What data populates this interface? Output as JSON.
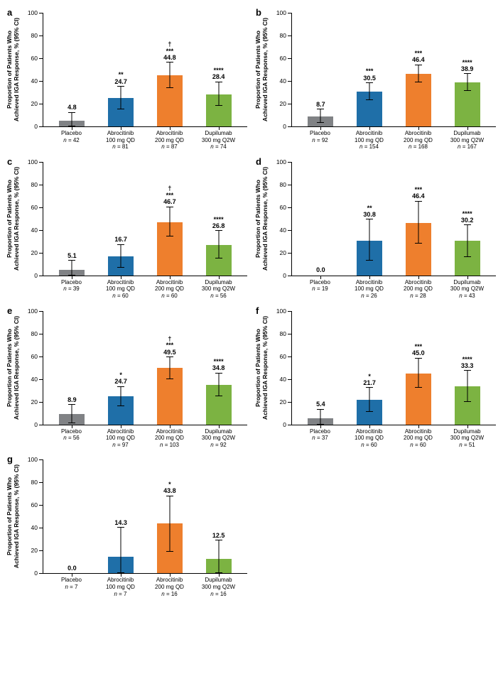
{
  "ylabel_line1": "Proportion of Patients Who",
  "ylabel_line2": "Achieved IGA Response, % (95% CI)",
  "ylim": [
    0,
    100
  ],
  "ytick_step": 20,
  "colors": {
    "placebo": "#808285",
    "abro100": "#1f6fa8",
    "abro200": "#ee7f2d",
    "dupi": "#7cb342"
  },
  "groups": [
    {
      "key": "placebo",
      "label": "Placebo",
      "dose": ""
    },
    {
      "key": "abro100",
      "label": "Abrocitinib",
      "dose": "100 mg QD"
    },
    {
      "key": "abro200",
      "label": "Abrocitinib",
      "dose": "200 mg QD"
    },
    {
      "key": "dupi",
      "label": "Dupilumab",
      "dose": "300 mg Q2W"
    }
  ],
  "panels": {
    "a": {
      "letter": "a",
      "data": [
        {
          "n": 42,
          "value": 4.8,
          "lo": 0,
          "hi": 12,
          "sig": ""
        },
        {
          "n": 81,
          "value": 24.7,
          "lo": 15,
          "hi": 35,
          "sig": "**"
        },
        {
          "n": 87,
          "value": 44.8,
          "lo": 34,
          "hi": 56,
          "sig": "†\n***"
        },
        {
          "n": 74,
          "value": 28.4,
          "lo": 18,
          "hi": 39,
          "sig": "****"
        }
      ]
    },
    "b": {
      "letter": "b",
      "data": [
        {
          "n": 92,
          "value": 8.7,
          "lo": 3,
          "hi": 15,
          "sig": ""
        },
        {
          "n": 154,
          "value": 30.5,
          "lo": 23,
          "hi": 38,
          "sig": "***"
        },
        {
          "n": 168,
          "value": 46.4,
          "lo": 39,
          "hi": 54,
          "sig": "***"
        },
        {
          "n": 167,
          "value": 38.9,
          "lo": 31,
          "hi": 46,
          "sig": "****"
        }
      ]
    },
    "c": {
      "letter": "c",
      "data": [
        {
          "n": 39,
          "value": 5.1,
          "lo": 0,
          "hi": 13,
          "sig": ""
        },
        {
          "n": 60,
          "value": 16.7,
          "lo": 7,
          "hi": 27,
          "sig": ""
        },
        {
          "n": 60,
          "value": 46.7,
          "lo": 34,
          "hi": 60,
          "sig": "†\n***"
        },
        {
          "n": 56,
          "value": 26.8,
          "lo": 15,
          "hi": 39,
          "sig": "****"
        }
      ]
    },
    "d": {
      "letter": "d",
      "data": [
        {
          "n": 19,
          "value": 0.0,
          "lo": 0,
          "hi": 0,
          "sig": ""
        },
        {
          "n": 26,
          "value": 30.8,
          "lo": 13,
          "hi": 49,
          "sig": "**"
        },
        {
          "n": 28,
          "value": 46.4,
          "lo": 28,
          "hi": 65,
          "sig": "***"
        },
        {
          "n": 43,
          "value": 30.2,
          "lo": 16,
          "hi": 44,
          "sig": "****"
        }
      ]
    },
    "e": {
      "letter": "e",
      "data": [
        {
          "n": 56,
          "value": 8.9,
          "lo": 1,
          "hi": 17,
          "sig": ""
        },
        {
          "n": 97,
          "value": 24.7,
          "lo": 16,
          "hi": 33,
          "sig": "*"
        },
        {
          "n": 103,
          "value": 49.5,
          "lo": 40,
          "hi": 59,
          "sig": "†\n***"
        },
        {
          "n": 92,
          "value": 34.8,
          "lo": 25,
          "hi": 45,
          "sig": "****"
        }
      ]
    },
    "f": {
      "letter": "f",
      "data": [
        {
          "n": 37,
          "value": 5.4,
          "lo": 0,
          "hi": 13,
          "sig": ""
        },
        {
          "n": 60,
          "value": 21.7,
          "lo": 11,
          "hi": 32,
          "sig": "*"
        },
        {
          "n": 60,
          "value": 45.0,
          "lo": 32,
          "hi": 58,
          "sig": "***"
        },
        {
          "n": 51,
          "value": 33.3,
          "lo": 20,
          "hi": 47,
          "sig": "****"
        }
      ]
    },
    "g": {
      "letter": "g",
      "data": [
        {
          "n": 7,
          "value": 0.0,
          "lo": 0,
          "hi": 0,
          "sig": ""
        },
        {
          "n": 7,
          "value": 14.3,
          "lo": 0,
          "hi": 40,
          "sig": ""
        },
        {
          "n": 16,
          "value": 43.8,
          "lo": 19,
          "hi": 68,
          "sig": "*"
        },
        {
          "n": 16,
          "value": 12.5,
          "lo": 0,
          "hi": 29,
          "sig": ""
        }
      ]
    }
  }
}
